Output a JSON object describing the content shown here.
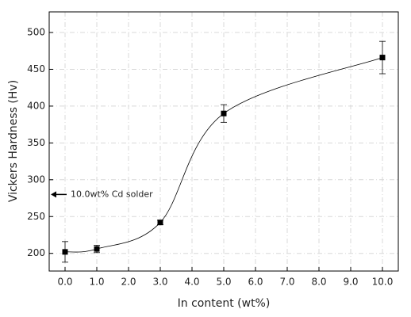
{
  "chart_data": {
    "type": "line",
    "xlabel": "In content (wt%)",
    "ylabel": "Vickers Hardness (Hv)",
    "x": [
      0,
      1,
      3,
      5,
      10
    ],
    "series": [
      {
        "values": [
          202,
          206,
          242,
          390,
          466
        ],
        "errors": [
          14,
          5,
          3,
          12,
          22
        ],
        "color": "#000000"
      }
    ],
    "xlim": [
      -0.5,
      10.5
    ],
    "xticks": [
      {
        "value": 0,
        "label": "0.0"
      },
      {
        "value": 1,
        "label": "1.0"
      },
      {
        "value": 2,
        "label": "2.0"
      },
      {
        "value": 3,
        "label": "3.0"
      },
      {
        "value": 4,
        "label": "4.0"
      },
      {
        "value": 5,
        "label": "5.0"
      },
      {
        "value": 6,
        "label": "6.0"
      },
      {
        "value": 7,
        "label": "7.0"
      },
      {
        "value": 8,
        "label": "8.0"
      },
      {
        "value": 9,
        "label": "9.0"
      },
      {
        "value": 10,
        "label": "10.0"
      }
    ],
    "ylim": [
      176,
      528
    ],
    "yticks": [
      200,
      250,
      300,
      350,
      400,
      450,
      500
    ],
    "grid": true,
    "annotation": {
      "text": "10.0wt% Cd solder",
      "value": 280
    }
  }
}
